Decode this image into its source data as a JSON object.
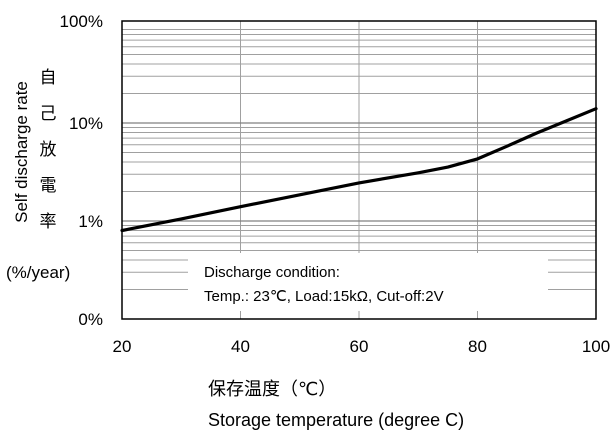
{
  "chart_data": {
    "type": "line",
    "y_scale": "log",
    "grid": true,
    "x_ticks": [
      "20",
      "40",
      "60",
      "80",
      "100"
    ],
    "y_ticks": [
      "0%",
      "1%",
      "10%",
      "100%"
    ],
    "xlim": [
      20,
      100
    ],
    "xlabel_ja": "保存温度（℃）",
    "xlabel_en": "Storage temperature (degree C)",
    "ylabel_en": "Self discharge rate",
    "ylabel_ja": "自己放電率",
    "ylabel_unit": "(%/year)",
    "annotation": {
      "line1": "Discharge condition:",
      "line2": "Temp.: 23℃, Load:15kΩ, Cut-off:2V"
    },
    "series": [
      {
        "x": [
          20,
          30,
          40,
          50,
          60,
          70,
          75,
          80,
          85,
          90,
          95,
          100
        ],
        "y": [
          0.8,
          1.05,
          1.4,
          1.85,
          2.45,
          3.1,
          3.55,
          4.3,
          5.8,
          7.9,
          10.5,
          14
        ]
      }
    ],
    "colors": {
      "line": "#000000",
      "grid": "#a0a0a0",
      "axis": "#000000"
    }
  }
}
